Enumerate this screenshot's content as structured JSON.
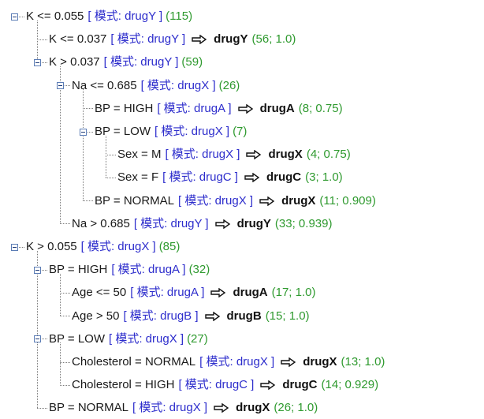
{
  "tree": {
    "nodes": [
      {
        "id": "n1",
        "depth": 0,
        "expandable": true,
        "condition": "K <= 0.055",
        "mode_label": "[ 模式: drugY ]",
        "count": "(115)",
        "prediction": null,
        "stats": null
      },
      {
        "id": "n2",
        "depth": 1,
        "expandable": false,
        "condition": "K <= 0.037",
        "mode_label": "[ 模式: drugY ]",
        "count": "",
        "prediction": "drugY",
        "stats": "(56; 1.0)"
      },
      {
        "id": "n3",
        "depth": 1,
        "expandable": true,
        "condition": "K > 0.037",
        "mode_label": "[ 模式: drugY ]",
        "count": "(59)",
        "prediction": null,
        "stats": null
      },
      {
        "id": "n4",
        "depth": 2,
        "expandable": true,
        "condition": "Na <= 0.685",
        "mode_label": "[ 模式: drugX ]",
        "count": "(26)",
        "prediction": null,
        "stats": null
      },
      {
        "id": "n5",
        "depth": 3,
        "expandable": false,
        "condition": "BP = HIGH",
        "mode_label": "[ 模式: drugA ]",
        "count": "",
        "prediction": "drugA",
        "stats": "(8; 0.75)"
      },
      {
        "id": "n6",
        "depth": 3,
        "expandable": true,
        "condition": "BP = LOW",
        "mode_label": "[ 模式: drugX ]",
        "count": "(7)",
        "prediction": null,
        "stats": null
      },
      {
        "id": "n7",
        "depth": 4,
        "expandable": false,
        "condition": "Sex = M",
        "mode_label": "[ 模式: drugX ]",
        "count": "",
        "prediction": "drugX",
        "stats": "(4; 0.75)"
      },
      {
        "id": "n8",
        "depth": 4,
        "expandable": false,
        "condition": "Sex = F",
        "mode_label": "[ 模式: drugC ]",
        "count": "",
        "prediction": "drugC",
        "stats": "(3; 1.0)"
      },
      {
        "id": "n9",
        "depth": 3,
        "expandable": false,
        "condition": "BP = NORMAL",
        "mode_label": "[ 模式: drugX ]",
        "count": "",
        "prediction": "drugX",
        "stats": "(11; 0.909)"
      },
      {
        "id": "n10",
        "depth": 2,
        "expandable": false,
        "condition": "Na > 0.685",
        "mode_label": "[ 模式: drugY ]",
        "count": "",
        "prediction": "drugY",
        "stats": "(33; 0.939)"
      },
      {
        "id": "n11",
        "depth": 0,
        "expandable": true,
        "condition": "K > 0.055",
        "mode_label": "[ 模式: drugX ]",
        "count": "(85)",
        "prediction": null,
        "stats": null
      },
      {
        "id": "n12",
        "depth": 1,
        "expandable": true,
        "condition": "BP = HIGH",
        "mode_label": "[ 模式: drugA ]",
        "count": "(32)",
        "prediction": null,
        "stats": null
      },
      {
        "id": "n13",
        "depth": 2,
        "expandable": false,
        "condition": "Age <= 50",
        "mode_label": "[ 模式: drugA ]",
        "count": "",
        "prediction": "drugA",
        "stats": "(17; 1.0)"
      },
      {
        "id": "n14",
        "depth": 2,
        "expandable": false,
        "condition": "Age > 50",
        "mode_label": "[ 模式: drugB ]",
        "count": "",
        "prediction": "drugB",
        "stats": "(15; 1.0)"
      },
      {
        "id": "n15",
        "depth": 1,
        "expandable": true,
        "condition": "BP = LOW",
        "mode_label": "[ 模式: drugX ]",
        "count": "(27)",
        "prediction": null,
        "stats": null
      },
      {
        "id": "n16",
        "depth": 2,
        "expandable": false,
        "condition": "Cholesterol = NORMAL",
        "mode_label": "[ 模式: drugX ]",
        "count": "",
        "prediction": "drugX",
        "stats": "(13; 1.0)"
      },
      {
        "id": "n17",
        "depth": 2,
        "expandable": false,
        "condition": "Cholesterol = HIGH",
        "mode_label": "[ 模式: drugC ]",
        "count": "",
        "prediction": "drugC",
        "stats": "(14; 0.929)"
      },
      {
        "id": "n18",
        "depth": 1,
        "expandable": false,
        "condition": "BP = NORMAL",
        "mode_label": "[ 模式: drugX ]",
        "count": "",
        "prediction": "drugX",
        "stats": "(26; 1.0)"
      }
    ],
    "icons": {
      "toggle": "minus-box-icon",
      "arrow": "hollow-right-arrow-icon"
    },
    "colors": {
      "mode": "#2d2dcc",
      "count": "#2f9a2f",
      "connector": "#7a7a7a",
      "toggle_border": "#5b7cb5"
    }
  }
}
